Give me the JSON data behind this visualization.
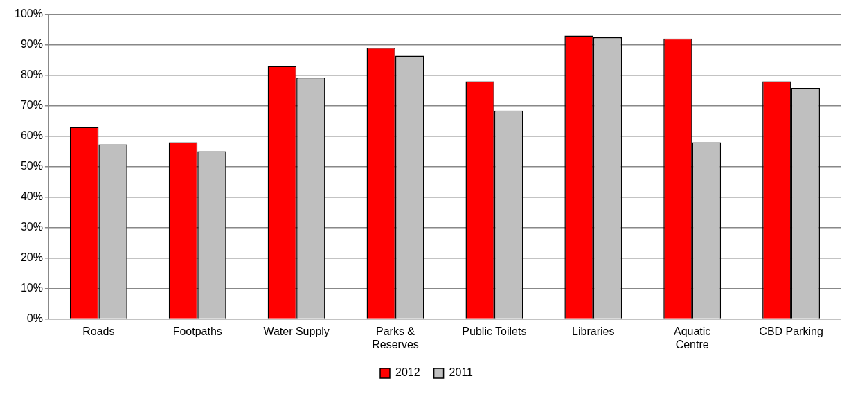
{
  "chart_data": {
    "type": "bar",
    "categories": [
      "Roads",
      "Footpaths",
      "Water Supply",
      "Parks &\nReserves",
      "Public Toilets",
      "Libraries",
      "Aquatic\nCentre",
      "CBD Parking"
    ],
    "series": [
      {
        "name": "2012",
        "color": "#ff0000",
        "values": [
          63,
          58,
          83,
          89,
          78,
          93,
          92,
          78
        ]
      },
      {
        "name": "2011",
        "color": "#bfbfbf",
        "values": [
          57.3,
          55,
          79.2,
          86.4,
          68.4,
          92.4,
          58,
          75.8
        ]
      }
    ],
    "ylim": [
      0,
      100
    ],
    "yticks": [
      {
        "value": 0,
        "label": "0%"
      },
      {
        "value": 10,
        "label": "10%"
      },
      {
        "value": 20,
        "label": "20%"
      },
      {
        "value": 30,
        "label": "30%"
      },
      {
        "value": 40,
        "label": "40%"
      },
      {
        "value": 50,
        "label": "50%"
      },
      {
        "value": 60,
        "label": "60%"
      },
      {
        "value": 70,
        "label": "70%"
      },
      {
        "value": 80,
        "label": "80%"
      },
      {
        "value": 90,
        "label": "90%"
      },
      {
        "value": 100,
        "label": "100%"
      }
    ],
    "grid": "y",
    "legend": "bottom"
  }
}
